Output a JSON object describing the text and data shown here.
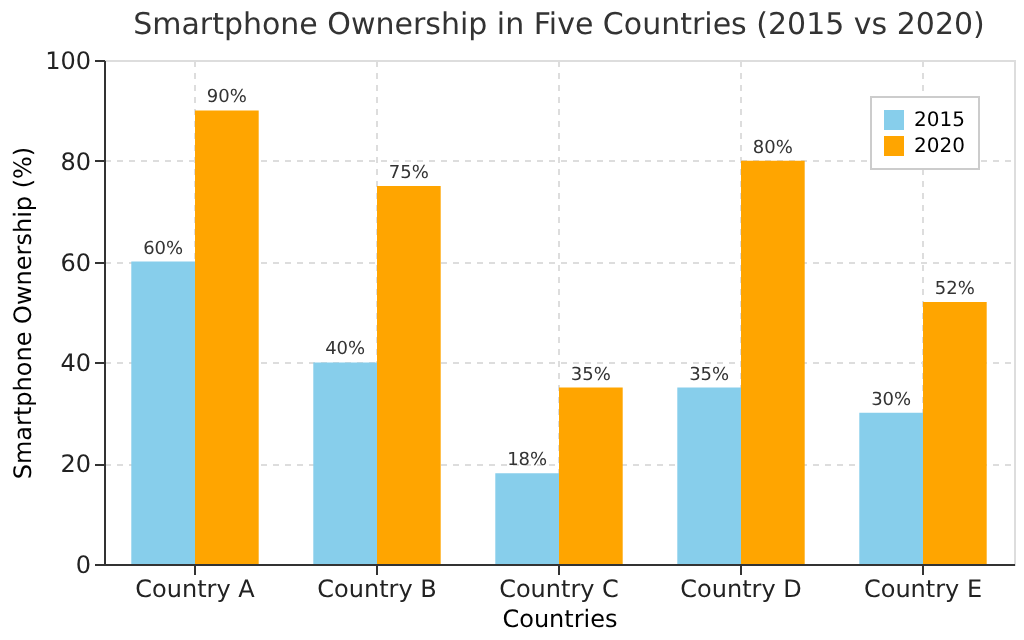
{
  "chart_data": {
    "type": "bar",
    "title": "Smartphone Ownership in Five Countries (2015 vs 2020)",
    "xlabel": "Countries",
    "ylabel": "Smartphone Ownership (%)",
    "categories": [
      "Country A",
      "Country B",
      "Country C",
      "Country D",
      "Country E"
    ],
    "series": [
      {
        "name": "2015",
        "color": "#87ceeb",
        "values": [
          60,
          40,
          18,
          35,
          30
        ],
        "value_labels": [
          "60%",
          "40%",
          "18%",
          "35%",
          "30%"
        ]
      },
      {
        "name": "2020",
        "color": "#ffa500",
        "values": [
          90,
          75,
          35,
          80,
          52
        ],
        "value_labels": [
          "90%",
          "75%",
          "35%",
          "80%",
          "52%"
        ]
      }
    ],
    "ylim": [
      0,
      100
    ],
    "yticks": [
      0,
      20,
      40,
      60,
      80,
      100
    ],
    "grid": true,
    "legend": "top right"
  }
}
